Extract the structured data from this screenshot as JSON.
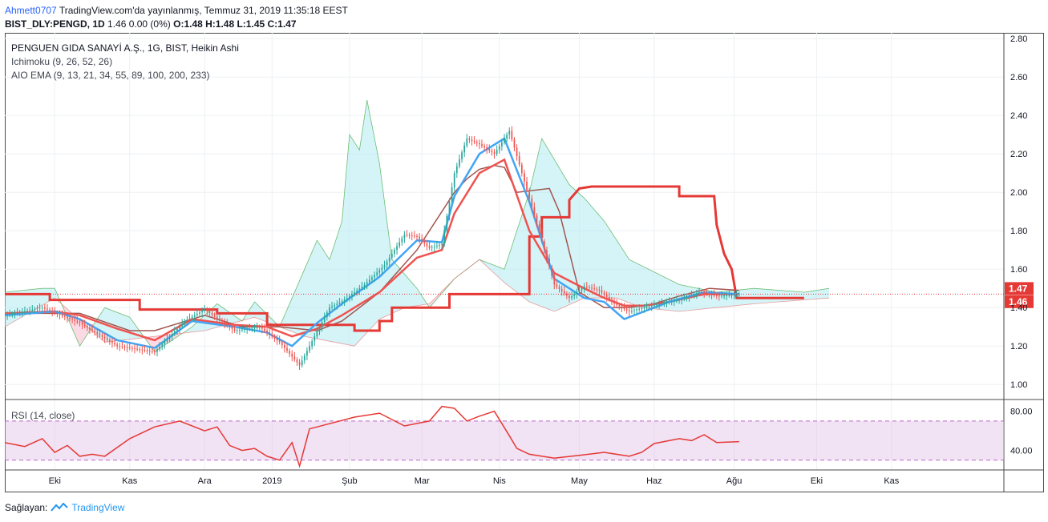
{
  "header": {
    "user": "Ahmett0707",
    "published": "TradingView.com'da yayınlanmış, Temmuz 31, 2019 11:35:18 EEST",
    "symbol": "BIST_DLY:PENGD, 1D",
    "change": "1.46 0.00 (0%)",
    "ohlc": "O:1.48 H:1.48 L:1.45 C:1.47"
  },
  "legend": {
    "title": "PENGUEN GIDA SANAYİ A.Ş., 1G, BIST, Heikin Ashi",
    "ichimoku": "Ichimoku (9, 26, 52, 26)",
    "ema": "AIO EMA (9, 13, 21, 34, 55, 89, 100, 200, 233)",
    "rsi": "RSI (14, close)"
  },
  "footer": {
    "label": "Sağlayan:",
    "brand": "TradingView"
  },
  "colors": {
    "up": "#26a69a",
    "down": "#ef5350",
    "ema9": "#42a5f5",
    "ema21": "#ef5350",
    "kijun": "#e53935",
    "baseline": "#a1554e",
    "spanA": "#4caf50",
    "cloud_bull": "#b2ebf2",
    "cloud_bear": "#f8bbd0",
    "rsi": "#e53935",
    "rsi_band": "#e1bee7"
  },
  "chart_data": [
    {
      "type": "candlestick",
      "title": "PENGUEN GIDA SANAYİ A.Ş., 1G, BIST, Heikin Ashi",
      "x_ticks": [
        "Eki",
        "Kas",
        "Ara",
        "2019",
        "Şub",
        "Mar",
        "Nis",
        "May",
        "Haz",
        "Ağu",
        "Eki",
        "Kas"
      ],
      "y_ticks": [
        "1.00",
        "1.20",
        "1.40",
        "1.60",
        "1.80",
        "2.00",
        "2.20",
        "2.40",
        "2.60",
        "2.80"
      ],
      "ylim": [
        0.93,
        2.83
      ],
      "last_price_labels": [
        "1.47",
        "1.46"
      ],
      "last_price": 1.47,
      "grid": true,
      "series": [
        {
          "name": "close",
          "t": [
            0,
            15,
            30,
            45,
            60,
            72,
            80,
            92,
            102,
            110,
            118,
            124,
            130,
            136,
            144,
            152,
            160,
            165,
            170,
            175,
            180,
            185,
            190,
            196,
            202,
            212,
            220,
            226,
            232,
            238,
            244,
            250,
            256,
            262,
            270,
            278,
            286,
            294
          ],
          "values": [
            1.36,
            1.4,
            1.32,
            1.2,
            1.17,
            1.33,
            1.39,
            1.28,
            1.3,
            1.22,
            1.1,
            1.25,
            1.4,
            1.44,
            1.52,
            1.62,
            1.78,
            1.77,
            1.71,
            1.73,
            2.1,
            2.28,
            2.25,
            2.2,
            2.32,
            1.88,
            1.52,
            1.45,
            1.51,
            1.49,
            1.42,
            1.38,
            1.4,
            1.42,
            1.44,
            1.48,
            1.46,
            1.47
          ]
        },
        {
          "name": "ema9",
          "t": [
            0,
            20,
            30,
            45,
            60,
            75,
            92,
            105,
            115,
            125,
            135,
            150,
            165,
            175,
            180,
            190,
            200,
            210,
            220,
            232,
            240,
            248,
            256,
            266,
            280,
            294
          ],
          "values": [
            1.36,
            1.38,
            1.34,
            1.23,
            1.19,
            1.33,
            1.3,
            1.27,
            1.2,
            1.32,
            1.42,
            1.56,
            1.75,
            1.74,
            1.98,
            2.2,
            2.28,
            1.95,
            1.55,
            1.45,
            1.43,
            1.34,
            1.38,
            1.43,
            1.48,
            1.47
          ]
        },
        {
          "name": "ema21",
          "t": [
            0,
            20,
            30,
            45,
            60,
            75,
            92,
            105,
            115,
            125,
            135,
            150,
            165,
            175,
            180,
            190,
            200,
            210,
            220,
            232,
            240,
            248,
            256,
            266,
            280,
            294
          ],
          "values": [
            1.37,
            1.38,
            1.36,
            1.29,
            1.23,
            1.34,
            1.31,
            1.3,
            1.25,
            1.29,
            1.36,
            1.48,
            1.66,
            1.7,
            1.89,
            2.1,
            2.17,
            1.8,
            1.58,
            1.5,
            1.45,
            1.41,
            1.41,
            1.43,
            1.47,
            1.47
          ]
        },
        {
          "name": "kijun",
          "t": [
            0,
            18,
            18,
            54,
            54,
            85,
            85,
            105,
            105,
            140,
            140,
            150,
            150,
            155,
            155,
            178,
            178,
            210,
            210,
            215,
            215,
            226,
            226,
            230,
            235,
            270,
            270,
            284,
            285,
            288,
            288,
            291,
            293,
            320
          ],
          "values": [
            1.47,
            1.47,
            1.44,
            1.44,
            1.39,
            1.39,
            1.37,
            1.37,
            1.31,
            1.31,
            1.28,
            1.28,
            1.33,
            1.33,
            1.4,
            1.4,
            1.47,
            1.47,
            1.77,
            1.77,
            1.87,
            1.87,
            1.96,
            2.02,
            2.03,
            2.03,
            1.98,
            1.98,
            1.83,
            1.68,
            1.68,
            1.6,
            1.45,
            1.45
          ]
        },
        {
          "name": "baseline",
          "t": [
            0,
            30,
            50,
            60,
            80,
            95,
            110,
            125,
            135,
            150,
            165,
            180,
            185,
            190,
            196,
            200,
            205,
            218,
            222,
            230,
            240,
            250,
            260,
            270,
            282,
            294
          ],
          "values": [
            1.37,
            1.37,
            1.28,
            1.28,
            1.36,
            1.3,
            1.3,
            1.28,
            1.33,
            1.48,
            1.7,
            2.0,
            2.07,
            2.12,
            2.14,
            2.13,
            2.0,
            2.02,
            1.9,
            1.48,
            1.4,
            1.4,
            1.42,
            1.46,
            1.5,
            1.49
          ]
        },
        {
          "name": "span_a",
          "t": [
            0,
            15,
            20,
            30,
            40,
            50,
            60,
            75,
            85,
            95,
            100,
            110,
            125,
            130,
            135,
            138,
            142,
            145,
            150,
            155,
            165,
            170,
            180,
            190,
            200,
            210,
            215,
            226,
            232,
            240,
            250,
            270,
            285,
            300,
            320,
            330
          ],
          "values": [
            1.48,
            1.5,
            1.5,
            1.2,
            1.4,
            1.35,
            1.17,
            1.3,
            1.42,
            1.33,
            1.43,
            1.3,
            1.75,
            1.65,
            1.85,
            2.3,
            2.22,
            2.48,
            2.15,
            1.65,
            1.5,
            1.4,
            1.55,
            1.65,
            1.6,
            2.0,
            2.28,
            2.04,
            1.97,
            1.85,
            1.65,
            1.52,
            1.48,
            1.5,
            1.48,
            1.5
          ]
        },
        {
          "name": "span_b",
          "t": [
            0,
            20,
            40,
            60,
            80,
            100,
            120,
            140,
            150,
            160,
            170,
            180,
            190,
            200,
            210,
            220,
            232,
            245,
            255,
            270,
            285,
            300,
            330
          ],
          "values": [
            1.3,
            1.45,
            1.22,
            1.25,
            1.28,
            1.35,
            1.25,
            1.2,
            1.34,
            1.4,
            1.42,
            1.55,
            1.65,
            1.53,
            1.43,
            1.38,
            1.45,
            1.45,
            1.4,
            1.38,
            1.4,
            1.42,
            1.45
          ]
        }
      ]
    },
    {
      "type": "line",
      "title": "RSI (14, close)",
      "y_ticks": [
        "40.00",
        "80.00"
      ],
      "ylim": [
        20,
        92
      ],
      "bands": [
        30,
        70
      ],
      "series": [
        {
          "name": "rsi",
          "t": [
            0,
            8,
            15,
            20,
            25,
            30,
            35,
            40,
            50,
            60,
            70,
            80,
            85,
            90,
            95,
            100,
            105,
            110,
            115,
            118,
            122,
            128,
            140,
            150,
            160,
            170,
            175,
            180,
            185,
            190,
            196,
            202,
            205,
            210,
            220,
            230,
            240,
            250,
            255,
            260,
            270,
            275,
            280,
            285,
            294
          ],
          "values": [
            48,
            44,
            52,
            38,
            45,
            34,
            36,
            34,
            52,
            64,
            70,
            60,
            64,
            45,
            40,
            42,
            34,
            30,
            48,
            24,
            62,
            66,
            74,
            78,
            65,
            70,
            85,
            83,
            70,
            75,
            80,
            55,
            42,
            36,
            32,
            35,
            38,
            34,
            38,
            47,
            52,
            50,
            56,
            48,
            49
          ]
        }
      ]
    }
  ]
}
